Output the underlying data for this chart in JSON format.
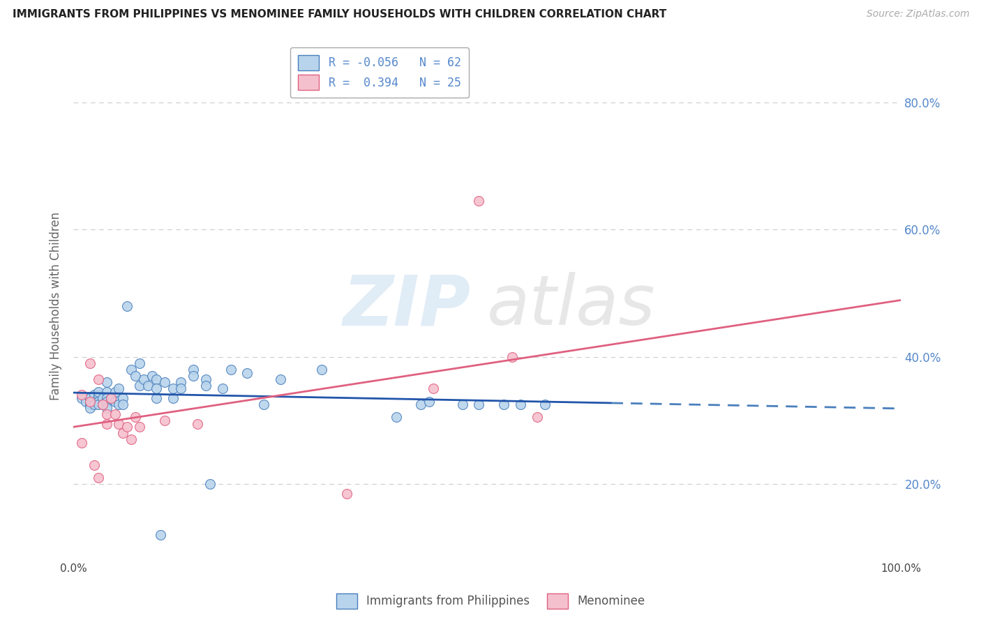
{
  "title": "IMMIGRANTS FROM PHILIPPINES VS MENOMINEE FAMILY HOUSEHOLDS WITH CHILDREN CORRELATION CHART",
  "source": "Source: ZipAtlas.com",
  "ylabel": "Family Households with Children",
  "xlim": [
    0.0,
    1.0
  ],
  "ylim": [
    0.08,
    0.88
  ],
  "xtick_labels": [
    "0.0%",
    "",
    "",
    "",
    "",
    "100.0%"
  ],
  "xtick_values": [
    0.0,
    0.2,
    0.4,
    0.6,
    0.8,
    1.0
  ],
  "ytick_labels": [
    "20.0%",
    "40.0%",
    "60.0%",
    "80.0%"
  ],
  "ytick_values": [
    0.2,
    0.4,
    0.6,
    0.8
  ],
  "r_blue": -0.056,
  "n_blue": 62,
  "r_pink": 0.394,
  "n_pink": 25,
  "blue_color": "#b8d4ec",
  "pink_color": "#f5c0ce",
  "blue_line_color": "#4a7fbc",
  "blue_line_color_dark": "#2255aa",
  "pink_line_color": "#e06080",
  "tick_color": "#5588cc",
  "background_color": "#ffffff",
  "grid_color": "#cccccc",
  "blue_scatter": [
    [
      0.01,
      0.335
    ],
    [
      0.015,
      0.33
    ],
    [
      0.02,
      0.335
    ],
    [
      0.02,
      0.325
    ],
    [
      0.02,
      0.32
    ],
    [
      0.025,
      0.34
    ],
    [
      0.025,
      0.33
    ],
    [
      0.025,
      0.325
    ],
    [
      0.03,
      0.34
    ],
    [
      0.03,
      0.33
    ],
    [
      0.03,
      0.325
    ],
    [
      0.03,
      0.345
    ],
    [
      0.035,
      0.335
    ],
    [
      0.035,
      0.325
    ],
    [
      0.04,
      0.36
    ],
    [
      0.04,
      0.345
    ],
    [
      0.04,
      0.335
    ],
    [
      0.04,
      0.33
    ],
    [
      0.04,
      0.32
    ],
    [
      0.045,
      0.335
    ],
    [
      0.05,
      0.345
    ],
    [
      0.05,
      0.33
    ],
    [
      0.055,
      0.35
    ],
    [
      0.055,
      0.325
    ],
    [
      0.06,
      0.335
    ],
    [
      0.06,
      0.325
    ],
    [
      0.065,
      0.48
    ],
    [
      0.07,
      0.38
    ],
    [
      0.075,
      0.37
    ],
    [
      0.08,
      0.39
    ],
    [
      0.08,
      0.355
    ],
    [
      0.085,
      0.365
    ],
    [
      0.09,
      0.355
    ],
    [
      0.095,
      0.37
    ],
    [
      0.1,
      0.365
    ],
    [
      0.1,
      0.35
    ],
    [
      0.1,
      0.335
    ],
    [
      0.105,
      0.12
    ],
    [
      0.11,
      0.36
    ],
    [
      0.12,
      0.35
    ],
    [
      0.12,
      0.335
    ],
    [
      0.13,
      0.36
    ],
    [
      0.13,
      0.35
    ],
    [
      0.145,
      0.38
    ],
    [
      0.145,
      0.37
    ],
    [
      0.16,
      0.365
    ],
    [
      0.16,
      0.355
    ],
    [
      0.165,
      0.2
    ],
    [
      0.18,
      0.35
    ],
    [
      0.19,
      0.38
    ],
    [
      0.21,
      0.375
    ],
    [
      0.23,
      0.325
    ],
    [
      0.25,
      0.365
    ],
    [
      0.3,
      0.38
    ],
    [
      0.39,
      0.305
    ],
    [
      0.42,
      0.325
    ],
    [
      0.43,
      0.33
    ],
    [
      0.47,
      0.325
    ],
    [
      0.49,
      0.325
    ],
    [
      0.52,
      0.325
    ],
    [
      0.54,
      0.325
    ],
    [
      0.57,
      0.325
    ]
  ],
  "pink_scatter": [
    [
      0.01,
      0.34
    ],
    [
      0.01,
      0.265
    ],
    [
      0.02,
      0.39
    ],
    [
      0.02,
      0.33
    ],
    [
      0.025,
      0.23
    ],
    [
      0.03,
      0.21
    ],
    [
      0.03,
      0.365
    ],
    [
      0.035,
      0.325
    ],
    [
      0.04,
      0.31
    ],
    [
      0.04,
      0.295
    ],
    [
      0.045,
      0.335
    ],
    [
      0.05,
      0.31
    ],
    [
      0.055,
      0.295
    ],
    [
      0.06,
      0.28
    ],
    [
      0.065,
      0.29
    ],
    [
      0.07,
      0.27
    ],
    [
      0.075,
      0.305
    ],
    [
      0.08,
      0.29
    ],
    [
      0.11,
      0.3
    ],
    [
      0.15,
      0.295
    ],
    [
      0.33,
      0.185
    ],
    [
      0.435,
      0.35
    ],
    [
      0.49,
      0.645
    ],
    [
      0.53,
      0.4
    ],
    [
      0.56,
      0.305
    ]
  ],
  "blue_line_solid_end": 0.65,
  "watermark_zip": "ZIP",
  "watermark_atlas": "atlas"
}
